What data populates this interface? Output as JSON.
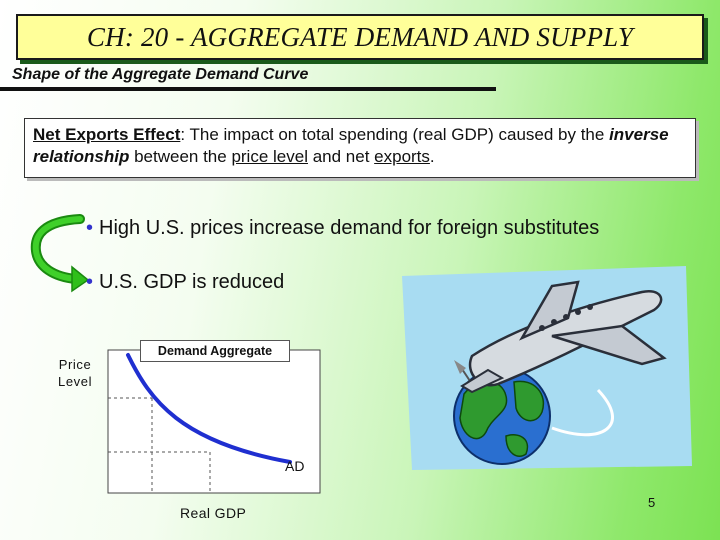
{
  "slide": {
    "title": "CH: 20 - AGGREGATE DEMAND AND SUPPLY",
    "subtitle": "Shape of the Aggregate Demand Curve",
    "definition": {
      "term": "Net Exports Effect",
      "text1": ": The impact on total spending (real GDP) caused by the ",
      "emph": "inverse relationship",
      "text2": " between the ",
      "link1": "price level",
      "text3": " and net ",
      "link2": "exports",
      "text4": "."
    },
    "bullets": [
      "High U.S. prices increase demand for foreign substitutes",
      "U.S. GDP is reduced"
    ],
    "page_number": "5"
  },
  "graph": {
    "y_label_line1": "Price",
    "y_label_line2": "Level",
    "x_label": "Real GDP",
    "curve_label": "AD",
    "box_label": "Demand Aggregate"
  },
  "colors": {
    "title_bg": "#ffff99",
    "bullet_dot": "#3333cc",
    "curve": "#1f2fd0",
    "arrow_green": "#2fbf1a"
  },
  "icons": {
    "arrow": "curved-arrow-icon",
    "illustration": "airplane-globe-icon"
  }
}
